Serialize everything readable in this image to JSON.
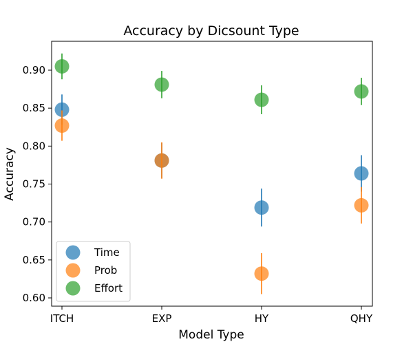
{
  "chart_data": {
    "type": "scatter",
    "title": "Accuracy by Dicsount Type",
    "xlabel": "Model Type",
    "ylabel": "Accuracy",
    "categories": [
      "ITCH",
      "EXP",
      "HY",
      "QHY"
    ],
    "ylim": [
      0.589,
      0.94
    ],
    "yticks": [
      "0.60",
      "0.65",
      "0.70",
      "0.75",
      "0.80",
      "0.85",
      "0.90"
    ],
    "grid": false,
    "legend_position": "lower-left",
    "series": [
      {
        "name": "Time",
        "color": "#1f77b4",
        "values": [
          0.848,
          0.781,
          0.719,
          0.764
        ],
        "errors": [
          0.02,
          0.023,
          0.025,
          0.024
        ]
      },
      {
        "name": "Prob",
        "color": "#ff7f0e",
        "values": [
          0.827,
          0.781,
          0.632,
          0.722
        ],
        "errors": [
          0.02,
          0.024,
          0.027,
          0.024
        ]
      },
      {
        "name": "Effort",
        "color": "#2ca02c",
        "values": [
          0.905,
          0.881,
          0.861,
          0.872
        ],
        "errors": [
          0.017,
          0.018,
          0.019,
          0.018
        ]
      }
    ]
  }
}
